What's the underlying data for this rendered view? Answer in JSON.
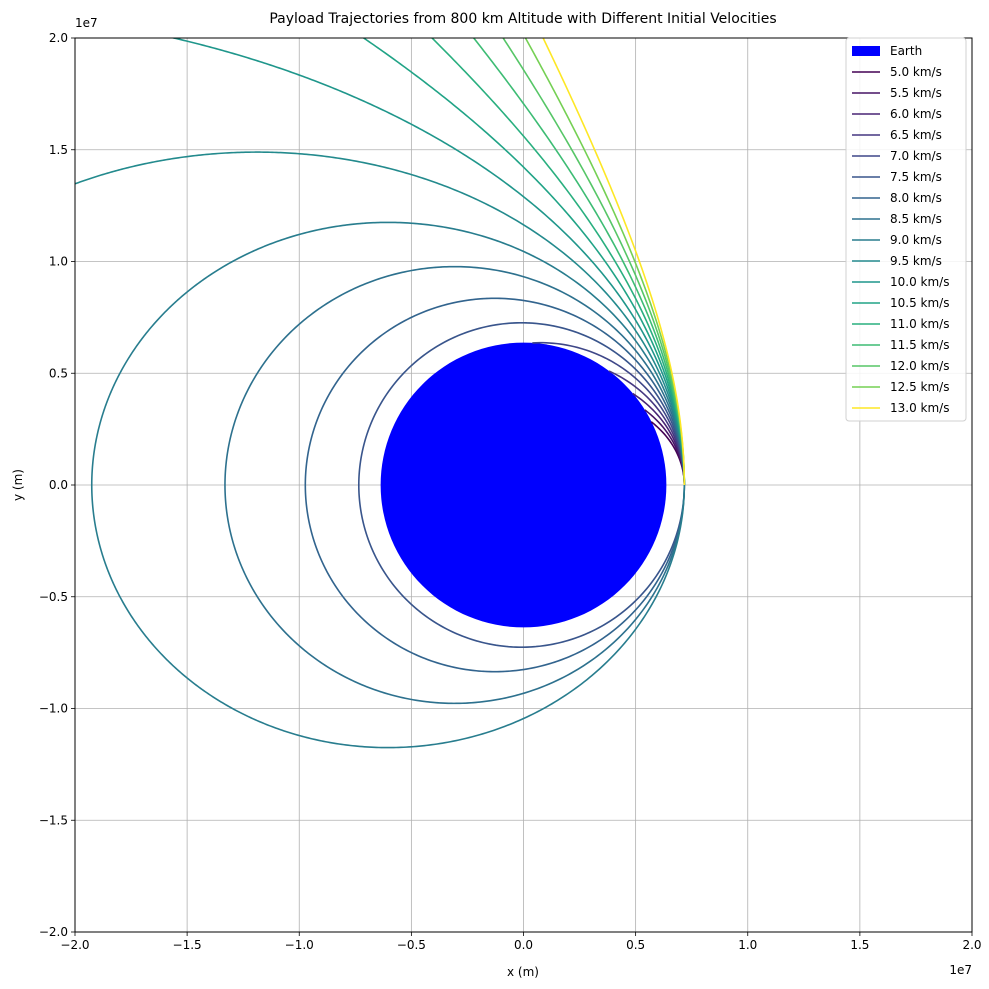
{
  "chart_data": {
    "type": "line",
    "title": "Payload Trajectories from 800 km Altitude with Different Initial Velocities",
    "xlabel": "x (m)",
    "ylabel": "y (m)",
    "offset_text_x": "1e7",
    "offset_text_y": "1e7",
    "xlim": [
      -20000000,
      20000000
    ],
    "ylim": [
      -20000000,
      20000000
    ],
    "xticks": [
      -2.0,
      -1.5,
      -1.0,
      -0.5,
      0.0,
      0.5,
      1.0,
      1.5,
      2.0
    ],
    "yticks": [
      -2.0,
      -1.5,
      -1.0,
      -0.5,
      0.0,
      0.5,
      1.0,
      1.5,
      2.0
    ],
    "xtick_labels": [
      "−2.0",
      "−1.5",
      "−1.0",
      "−0.5",
      "0.0",
      "0.5",
      "1.0",
      "1.5",
      "2.0"
    ],
    "ytick_labels": [
      "−2.0",
      "−1.5",
      "−1.0",
      "−0.5",
      "0.0",
      "0.5",
      "1.0",
      "1.5",
      "2.0"
    ],
    "tick_scale": 10000000,
    "grid": true,
    "legend_position": "top-right",
    "earth": {
      "label": "Earth",
      "radius_m": 6371000,
      "color": "#0000ff"
    },
    "initial_altitude_m": 800000,
    "series": [
      {
        "name": "5.0 km/s",
        "velocity_ms": 5000,
        "color": "#440154"
      },
      {
        "name": "5.5 km/s",
        "velocity_ms": 5500,
        "color": "#471365"
      },
      {
        "name": "6.0 km/s",
        "velocity_ms": 6000,
        "color": "#482475"
      },
      {
        "name": "6.5 km/s",
        "velocity_ms": 6500,
        "color": "#453781"
      },
      {
        "name": "7.0 km/s",
        "velocity_ms": 7000,
        "color": "#3f4788"
      },
      {
        "name": "7.5 km/s",
        "velocity_ms": 7500,
        "color": "#39558c"
      },
      {
        "name": "8.0 km/s",
        "velocity_ms": 8000,
        "color": "#32648e"
      },
      {
        "name": "8.5 km/s",
        "velocity_ms": 8500,
        "color": "#2d718e"
      },
      {
        "name": "9.0 km/s",
        "velocity_ms": 9000,
        "color": "#287d8e"
      },
      {
        "name": "9.5 km/s",
        "velocity_ms": 9500,
        "color": "#238a8d"
      },
      {
        "name": "10.0 km/s",
        "velocity_ms": 10000,
        "color": "#1f968b"
      },
      {
        "name": "10.5 km/s",
        "velocity_ms": 10500,
        "color": "#20a386"
      },
      {
        "name": "11.0 km/s",
        "velocity_ms": 11000,
        "color": "#29af7f"
      },
      {
        "name": "11.5 km/s",
        "velocity_ms": 11500,
        "color": "#3dbc74"
      },
      {
        "name": "12.0 km/s",
        "velocity_ms": 12000,
        "color": "#56c667"
      },
      {
        "name": "12.5 km/s",
        "velocity_ms": 12500,
        "color": "#75d054"
      },
      {
        "name": "13.0 km/s",
        "velocity_ms": 13000,
        "color": "#fde725"
      }
    ]
  }
}
